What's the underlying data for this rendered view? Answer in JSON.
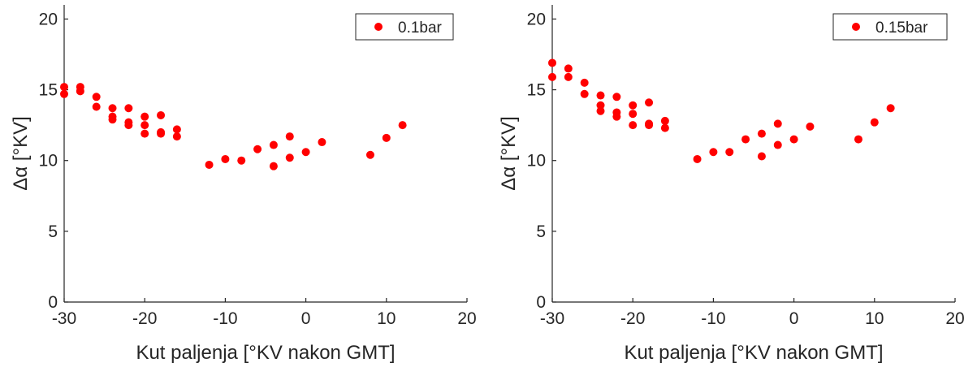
{
  "chart_data": [
    {
      "type": "scatter",
      "xlabel": "Kut paljenja [°KV nakon GMT]",
      "ylabel": "Δα [°KV]",
      "xlim": [
        -30,
        20
      ],
      "ylim": [
        0,
        21
      ],
      "xticks": [
        -30,
        -20,
        -10,
        0,
        10,
        20
      ],
      "yticks": [
        0,
        5,
        10,
        15,
        20
      ],
      "grid": false,
      "legend_position": "top-right",
      "series": [
        {
          "name": "0.1bar",
          "color": "#ff0000",
          "points": [
            [
              -30,
              15.2
            ],
            [
              -30,
              14.7
            ],
            [
              -28,
              15.2
            ],
            [
              -28,
              14.9
            ],
            [
              -26,
              14.5
            ],
            [
              -26,
              13.8
            ],
            [
              -24,
              13.7
            ],
            [
              -24,
              13.1
            ],
            [
              -24,
              12.9
            ],
            [
              -22,
              13.7
            ],
            [
              -22,
              12.7
            ],
            [
              -22,
              12.5
            ],
            [
              -20,
              13.1
            ],
            [
              -20,
              12.5
            ],
            [
              -20,
              11.9
            ],
            [
              -18,
              13.2
            ],
            [
              -18,
              12.0
            ],
            [
              -18,
              11.9
            ],
            [
              -16,
              12.2
            ],
            [
              -16,
              11.7
            ],
            [
              -12,
              9.7
            ],
            [
              -10,
              10.1
            ],
            [
              -8,
              10.0
            ],
            [
              -6,
              10.8
            ],
            [
              -4,
              11.1
            ],
            [
              -4,
              9.6
            ],
            [
              -2,
              11.7
            ],
            [
              -2,
              10.2
            ],
            [
              0,
              10.6
            ],
            [
              2,
              11.3
            ],
            [
              8,
              10.4
            ],
            [
              10,
              11.6
            ],
            [
              12,
              12.5
            ]
          ]
        }
      ]
    },
    {
      "type": "scatter",
      "xlabel": "Kut paljenja [°KV nakon GMT]",
      "ylabel": "Δα [°KV]",
      "xlim": [
        -30,
        20
      ],
      "ylim": [
        0,
        21
      ],
      "xticks": [
        -30,
        -20,
        -10,
        0,
        10,
        20
      ],
      "yticks": [
        0,
        5,
        10,
        15,
        20
      ],
      "grid": false,
      "legend_position": "top-right",
      "series": [
        {
          "name": "0.15bar",
          "color": "#ff0000",
          "points": [
            [
              -30,
              16.9
            ],
            [
              -30,
              15.9
            ],
            [
              -28,
              16.5
            ],
            [
              -28,
              15.9
            ],
            [
              -26,
              15.5
            ],
            [
              -26,
              14.7
            ],
            [
              -24,
              14.6
            ],
            [
              -24,
              13.9
            ],
            [
              -24,
              13.5
            ],
            [
              -22,
              14.5
            ],
            [
              -22,
              13.4
            ],
            [
              -22,
              13.1
            ],
            [
              -20,
              13.9
            ],
            [
              -20,
              13.3
            ],
            [
              -20,
              12.5
            ],
            [
              -18,
              14.1
            ],
            [
              -18,
              12.6
            ],
            [
              -18,
              12.5
            ],
            [
              -16,
              12.8
            ],
            [
              -16,
              12.3
            ],
            [
              -12,
              10.1
            ],
            [
              -10,
              10.6
            ],
            [
              -8,
              10.6
            ],
            [
              -6,
              11.5
            ],
            [
              -4,
              11.9
            ],
            [
              -4,
              10.3
            ],
            [
              -2,
              12.6
            ],
            [
              -2,
              11.1
            ],
            [
              0,
              11.5
            ],
            [
              2,
              12.4
            ],
            [
              8,
              11.5
            ],
            [
              10,
              12.7
            ],
            [
              12,
              13.7
            ]
          ]
        }
      ]
    }
  ]
}
